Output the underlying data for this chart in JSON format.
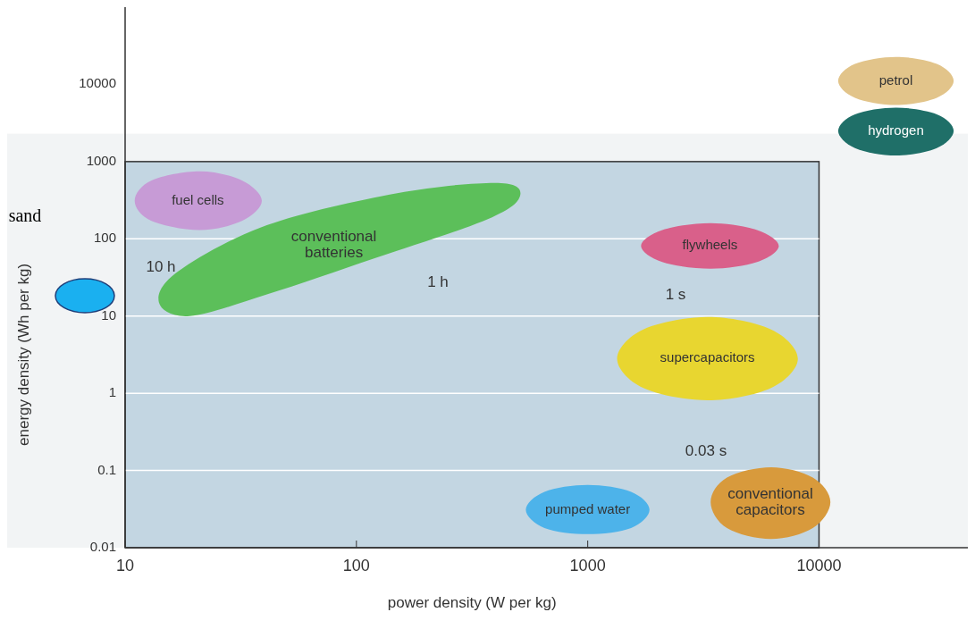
{
  "chart_data": {
    "type": "area",
    "xlabel": "power density (W per kg)",
    "ylabel": "energy density (Wh per kg)",
    "log": "xy",
    "grid": "y",
    "bands": [
      {
        "axis": "y",
        "from": 0.01,
        "to": 2300,
        "color": "#f2f4f5"
      }
    ],
    "xlim": [
      10,
      44000
    ],
    "ylim": [
      0.01,
      100000
    ],
    "xticks": [
      10,
      100,
      1000,
      10000
    ],
    "yticks": [
      0.01,
      0.1,
      1,
      10,
      100,
      1000,
      10000
    ],
    "annotations": [
      "10 h",
      "1 h",
      "1 s",
      "0.03 s",
      "sand"
    ],
    "series": [
      {
        "name": "fuel cells",
        "color": "#c79bd6",
        "x": [
          39,
          32,
          21,
          13,
          11,
          13,
          21,
          32
        ],
        "values": [
          310,
          570,
          750,
          570,
          310,
          170,
          130,
          170
        ]
      },
      {
        "name": "conventional\nbatteries",
        "color": "#5cbf5a",
        "x": [
          14,
          17,
          41,
          150,
          410,
          510,
          370,
          120,
          41,
          19
        ],
        "values": [
          15,
          38,
          150,
          390,
          530,
          360,
          180,
          56,
          19,
          10
        ]
      },
      {
        "name": "flywheels",
        "color": "#d9608a",
        "x": [
          6700,
          5400,
          3400,
          2100,
          1700,
          2100,
          3400,
          5400
        ],
        "values": [
          81,
          130,
          160,
          130,
          81,
          50,
          41,
          50
        ]
      },
      {
        "name": "supercapacitors",
        "color": "#e8d630",
        "x": [
          8100,
          6200,
          3300,
          1740,
          1340,
          1740,
          3300,
          6200
        ],
        "values": [
          2.8,
          6.7,
          9.7,
          6.7,
          2.8,
          1.17,
          0.81,
          1.17
        ]
      },
      {
        "name": "pumped water",
        "color": "#4db3ea",
        "x": [
          1850,
          1540,
          1000,
          650,
          540,
          650,
          1000,
          1540
        ],
        "values": [
          0.031,
          0.053,
          0.065,
          0.053,
          0.031,
          0.018,
          0.015,
          0.018
        ]
      },
      {
        "name": "conventional\ncapacitors",
        "color": "#d89a3c",
        "x": [
          11200,
          9400,
          6200,
          4000,
          3400,
          4000,
          6200,
          9400
        ],
        "values": [
          0.039,
          0.081,
          0.11,
          0.081,
          0.039,
          0.018,
          0.013,
          0.018
        ]
      },
      {
        "name": "petrol",
        "color": "#e2c48a",
        "x": [
          38200,
          32300,
          21500,
          14300,
          12100,
          14300,
          21500,
          32300
        ],
        "values": [
          11100,
          18400,
          22700,
          18400,
          11100,
          6700,
          5400,
          6700
        ]
      },
      {
        "name": "hydrogen",
        "color": "#1f6f68",
        "x": [
          38200,
          32300,
          21500,
          14300,
          12100,
          14300,
          21500,
          32300
        ],
        "values": [
          2500,
          4100,
          5000,
          4100,
          2500,
          1500,
          1200,
          1500
        ]
      }
    ]
  }
}
